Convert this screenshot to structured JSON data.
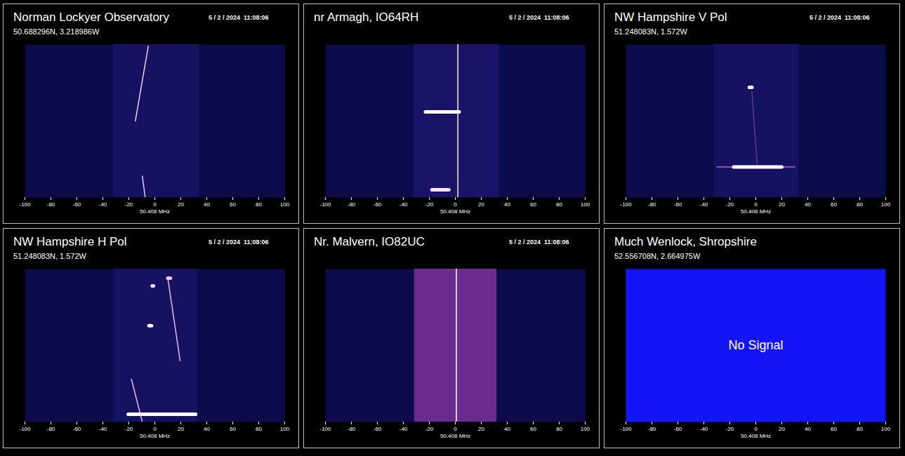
{
  "chart_data": [
    {
      "type": "spectrogram",
      "title": "Norman Lockyer Observatory",
      "subtitle": "50.688296N, 3.218986W",
      "timestamp": "5 / 2 / 2024  11:08:06",
      "xlabel": "50.408 MHz",
      "xlim": [
        -100,
        100
      ],
      "xticks": [
        -100,
        -80,
        -60,
        -40,
        -20,
        0,
        20,
        40,
        60,
        80,
        100
      ],
      "ylim": [
        0,
        1
      ],
      "tick_labels": "x",
      "background": "#0c0b4c",
      "band": {
        "x1": -32,
        "x2": 34,
        "color": "#161262"
      },
      "lines": [
        {
          "x": [
            -5,
            -15
          ],
          "y": [
            0.01,
            0.5
          ],
          "color": "#f0c8f0"
        },
        {
          "x": [
            -9.6,
            -7.4
          ],
          "y": [
            0.86,
            1.0
          ],
          "color": "#f0c8f0"
        }
      ],
      "blobs": []
    },
    {
      "type": "spectrogram",
      "title": "nr Armagh, IO64RH",
      "timestamp": "5 / 2 / 2024  11:08:06",
      "xlabel": "50.408 MHz",
      "xlim": [
        -100,
        100
      ],
      "xticks": [
        -100,
        -80,
        -60,
        -40,
        -20,
        0,
        20,
        40,
        60,
        80,
        100
      ],
      "ylim": [
        0,
        1
      ],
      "tick_labels": "x",
      "background": "#0c0b4c",
      "band": {
        "x1": -32,
        "x2": 34,
        "color": "#1a1468"
      },
      "lines": [
        {
          "x": [
            2,
            2
          ],
          "y": [
            0,
            1
          ],
          "color": "#fff4ff"
        }
      ],
      "blobs": [
        {
          "x": [
            -23,
            3
          ],
          "y": 0.44,
          "color": "#ffffff"
        },
        {
          "x": [
            -18,
            -5
          ],
          "y": 0.95,
          "color": "#ffe8ff"
        }
      ]
    },
    {
      "type": "spectrogram",
      "title": "NW Hampshire V Pol",
      "subtitle": "51.248083N, 1.572W",
      "timestamp": "5 / 2 / 2024  11:08:06",
      "xlabel": "50.408 MHz",
      "xlim": [
        -100,
        100
      ],
      "xticks": [
        -100,
        -80,
        -60,
        -40,
        -20,
        0,
        20,
        40,
        60,
        80,
        100
      ],
      "ylim": [
        0,
        1
      ],
      "tick_labels": "x",
      "background": "#0c0b4c",
      "band": {
        "x1": -32,
        "x2": 33,
        "color": "#161262"
      },
      "lines": [
        {
          "x": [
            -3,
            1
          ],
          "y": [
            0.31,
            0.78
          ],
          "color": "#5a3a8c"
        },
        {
          "x": [
            -30,
            30
          ],
          "y": [
            0.8,
            0.8
          ],
          "color": "#c060d0"
        }
      ],
      "blobs": [
        {
          "x": [
            -5,
            -3
          ],
          "y": 0.28,
          "color": "#ffffff"
        },
        {
          "x": [
            -17,
            20
          ],
          "y": 0.8,
          "color": "#ffffff"
        }
      ]
    },
    {
      "type": "spectrogram",
      "title": "NW Hampshire H Pol",
      "subtitle": "51.248083N, 1.572W",
      "timestamp": "5 / 2 / 2024  11:08:06",
      "xlabel": "50.408 MHz",
      "xlim": [
        -100,
        100
      ],
      "xticks": [
        -100,
        -80,
        -60,
        -40,
        -20,
        0,
        20,
        40,
        60,
        80,
        100
      ],
      "ylim": [
        0,
        1
      ],
      "tick_labels": "x",
      "background": "#0c0b4c",
      "band": {
        "x1": -31.5,
        "x2": 32.6,
        "color": "#161262"
      },
      "lines": [
        {
          "x": [
            10,
            19.5
          ],
          "y": [
            0.06,
            0.6
          ],
          "color": "#e8b8f0"
        },
        {
          "x": [
            -18,
            -9.6
          ],
          "y": [
            0.72,
            1.0
          ],
          "color": "#e8b8f0"
        }
      ],
      "blobs": [
        {
          "x": [
            -2,
            -1
          ],
          "y": 0.11,
          "color": "#ffe0ff"
        },
        {
          "x": [
            10,
            12
          ],
          "y": 0.06,
          "color": "#ffc0f0"
        },
        {
          "x": [
            -4.5,
            -2.5
          ],
          "y": 0.37,
          "color": "#ffffff"
        },
        {
          "x": [
            -20.5,
            31.5
          ],
          "y": 0.95,
          "color": "#ffffff"
        }
      ]
    },
    {
      "type": "spectrogram",
      "title": "Nr. Malvern, IO82UC",
      "timestamp": "5 / 2 / 2024  11:08:06",
      "xlabel": "50.408 MHz",
      "xlim": [
        -100,
        100
      ],
      "xticks": [
        -100,
        -80,
        -60,
        -40,
        -20,
        0,
        20,
        40,
        60,
        80,
        100
      ],
      "ylim": [
        0,
        1
      ],
      "tick_labels": "x",
      "background": "#0c0b4c",
      "band": {
        "x1": -31.5,
        "x2": 32,
        "color": "#6a2c8c"
      },
      "lines": [
        {
          "x": [
            0.8,
            0.8
          ],
          "y": [
            0,
            1
          ],
          "color": "#ffffff"
        }
      ],
      "blobs": []
    },
    {
      "type": "no_signal",
      "title": "Much Wenlock, Shropshire",
      "subtitle": "52.556708N, 2.664975W",
      "text": "No Signal",
      "xlabel": "50.408 MHz",
      "xlim": [
        -100,
        100
      ],
      "xticks": [
        -100,
        -80,
        -60,
        -40,
        -20,
        0,
        20,
        40,
        60,
        80,
        100
      ],
      "ylim": [
        0,
        1
      ],
      "tick_labels": "x",
      "background": "#1414f5"
    }
  ]
}
